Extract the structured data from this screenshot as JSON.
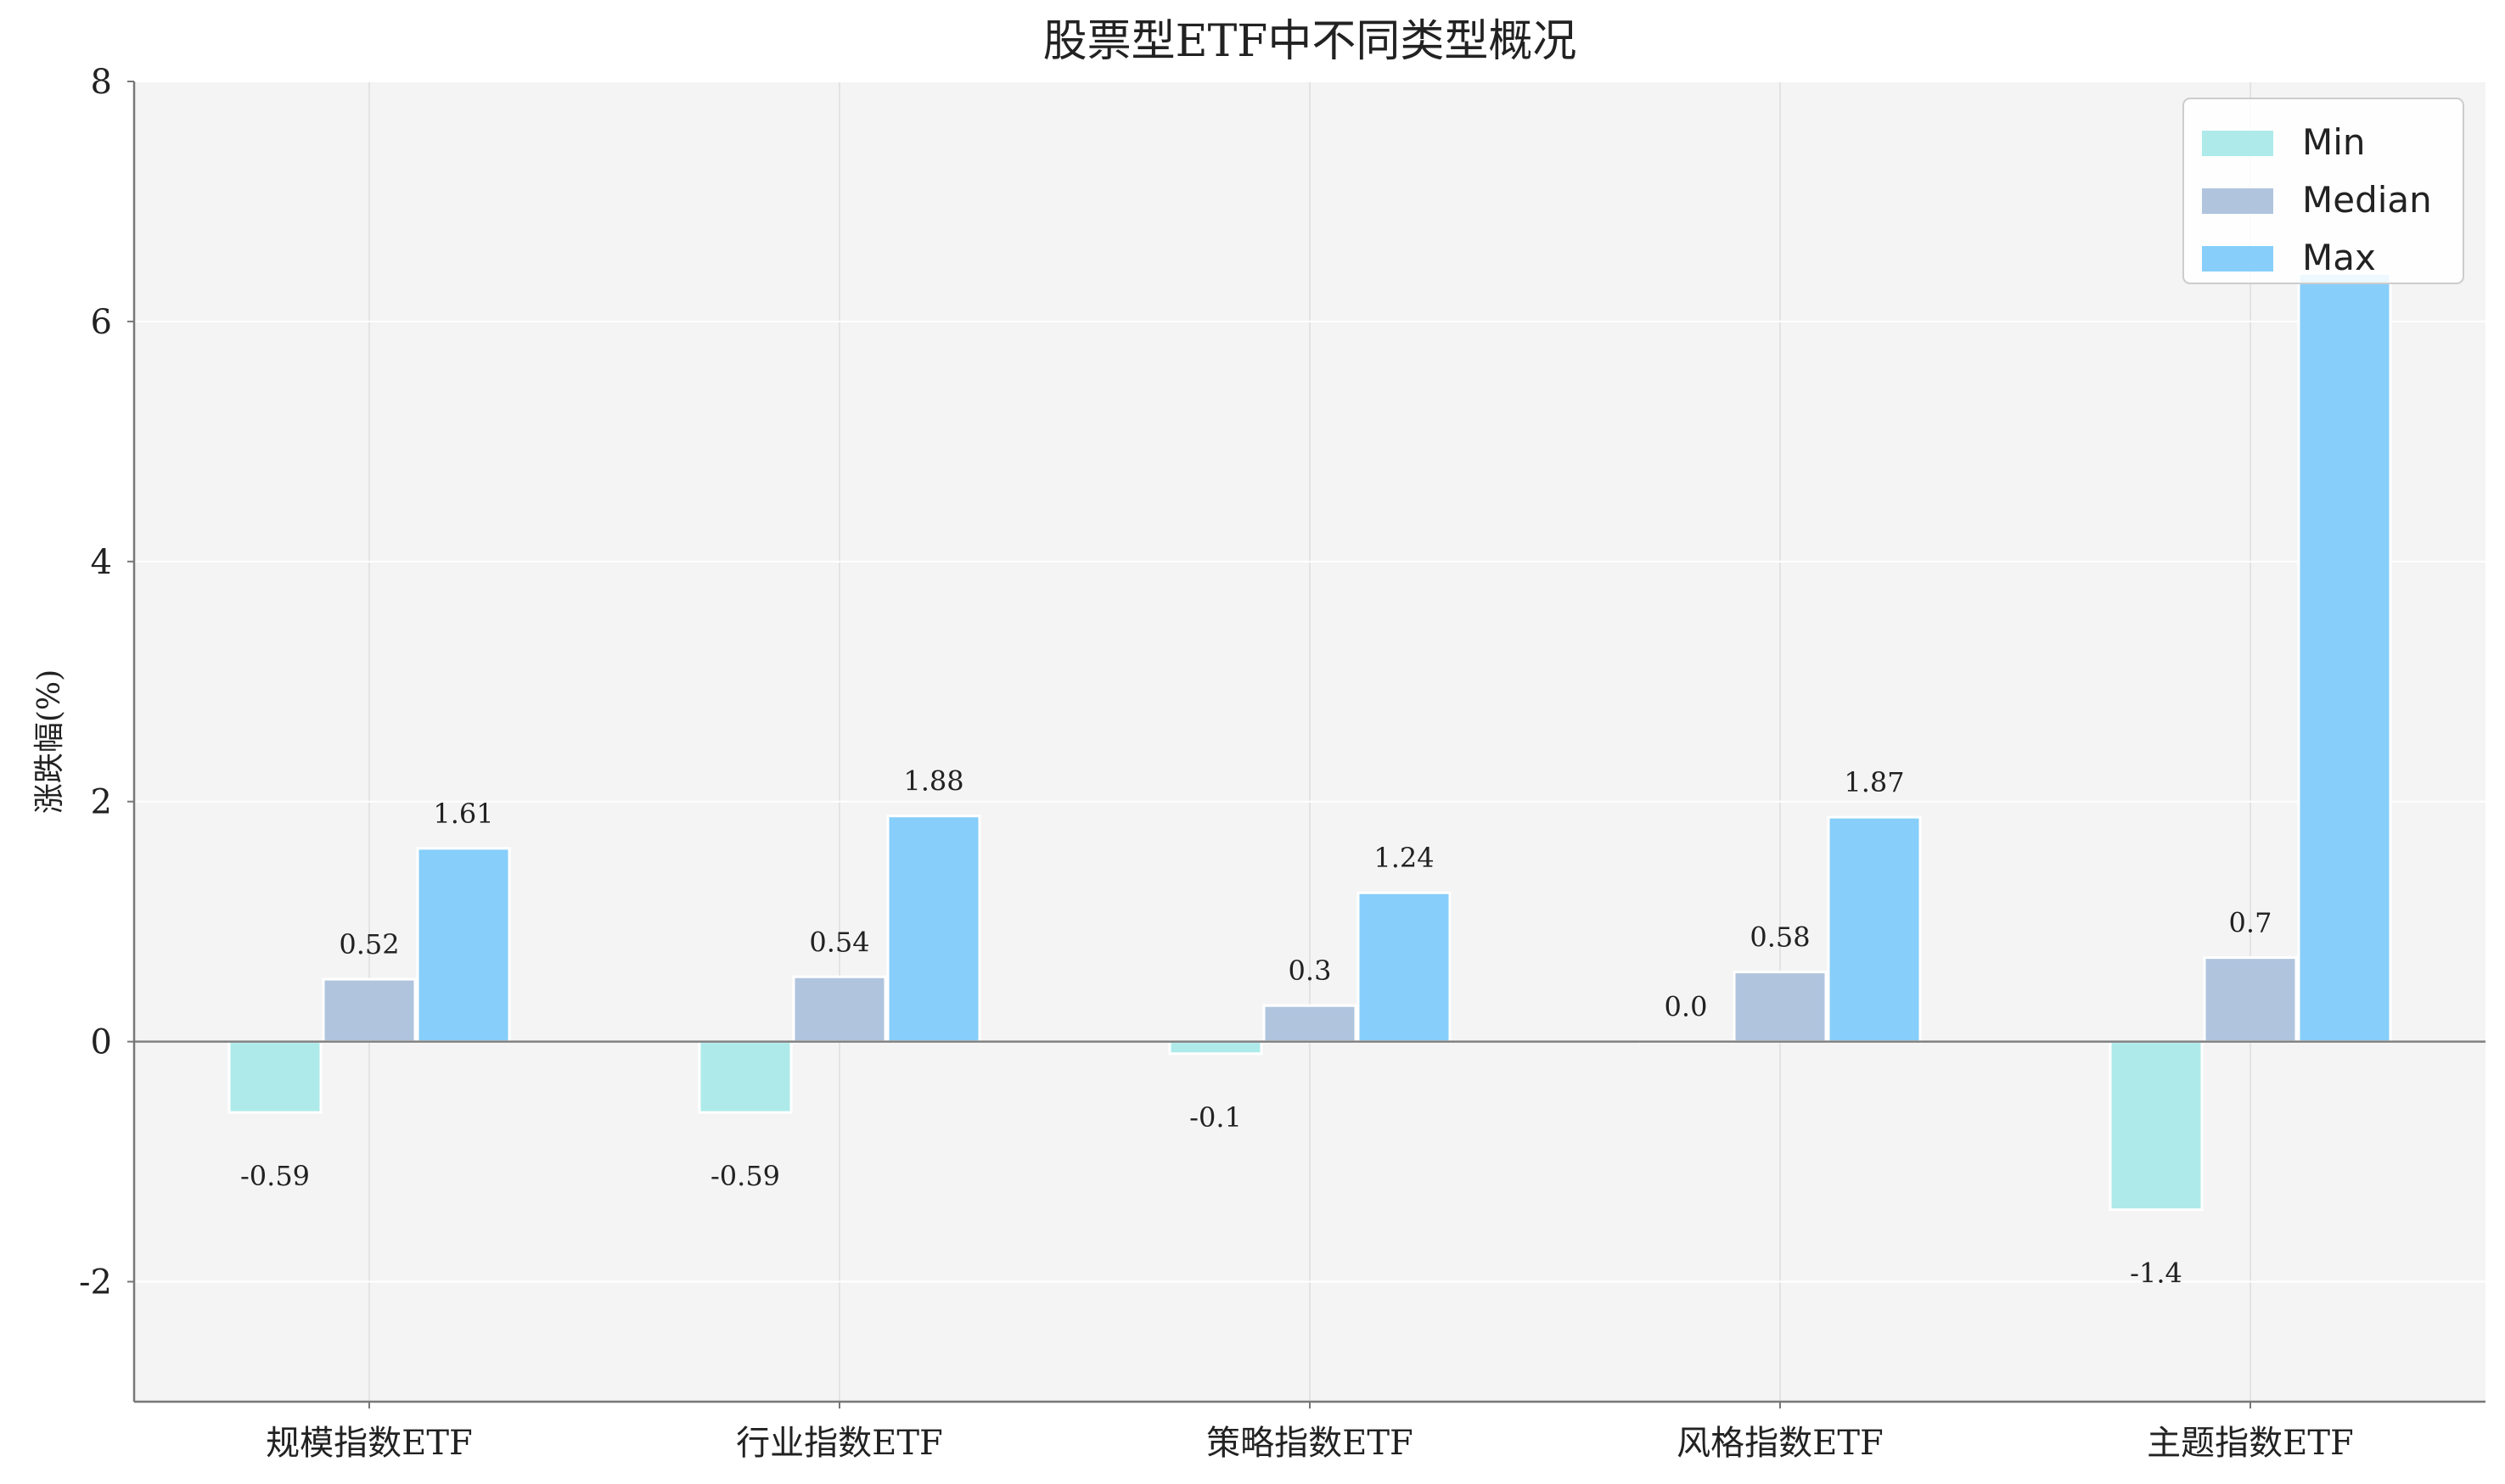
{
  "chart_data": {
    "type": "bar",
    "title": "股票型ETF中不同类型概况",
    "xlabel": "",
    "ylabel": "涨跌幅(%)",
    "categories": [
      "规模指数ETF",
      "行业指数ETF",
      "策略指数ETF",
      "风格指数ETF",
      "主题指数ETF"
    ],
    "series": [
      {
        "name": "Min",
        "color": "#aeeaea",
        "values": [
          -0.59,
          -0.59,
          -0.1,
          0.0,
          -1.4
        ],
        "labels": [
          "-0.59",
          "-0.59",
          "-0.1",
          "0.0",
          "-1.4"
        ]
      },
      {
        "name": "Median",
        "color": "#b0c4de",
        "values": [
          0.52,
          0.54,
          0.3,
          0.58,
          0.7
        ],
        "labels": [
          "0.52",
          "0.54",
          "0.3",
          "0.58",
          "0.7"
        ]
      },
      {
        "name": "Max",
        "color": "#87cefa",
        "values": [
          1.61,
          1.88,
          1.24,
          1.87,
          6.4
        ],
        "labels": [
          "1.61",
          "1.88",
          "1.24",
          "1.87",
          ""
        ]
      }
    ],
    "ylim": [
      -3,
      8
    ],
    "yticks": [
      -2,
      0,
      2,
      4,
      6,
      8
    ],
    "ytick_labels": [
      "-2",
      "0",
      "2",
      "4",
      "6",
      "8"
    ],
    "grid": true,
    "legend_position": "top-right",
    "colors": {
      "plot_background": "#f4f4f4",
      "grid": "#ffffff",
      "zero_line": "#808080",
      "axis": "#777777",
      "text": "#222222"
    }
  }
}
